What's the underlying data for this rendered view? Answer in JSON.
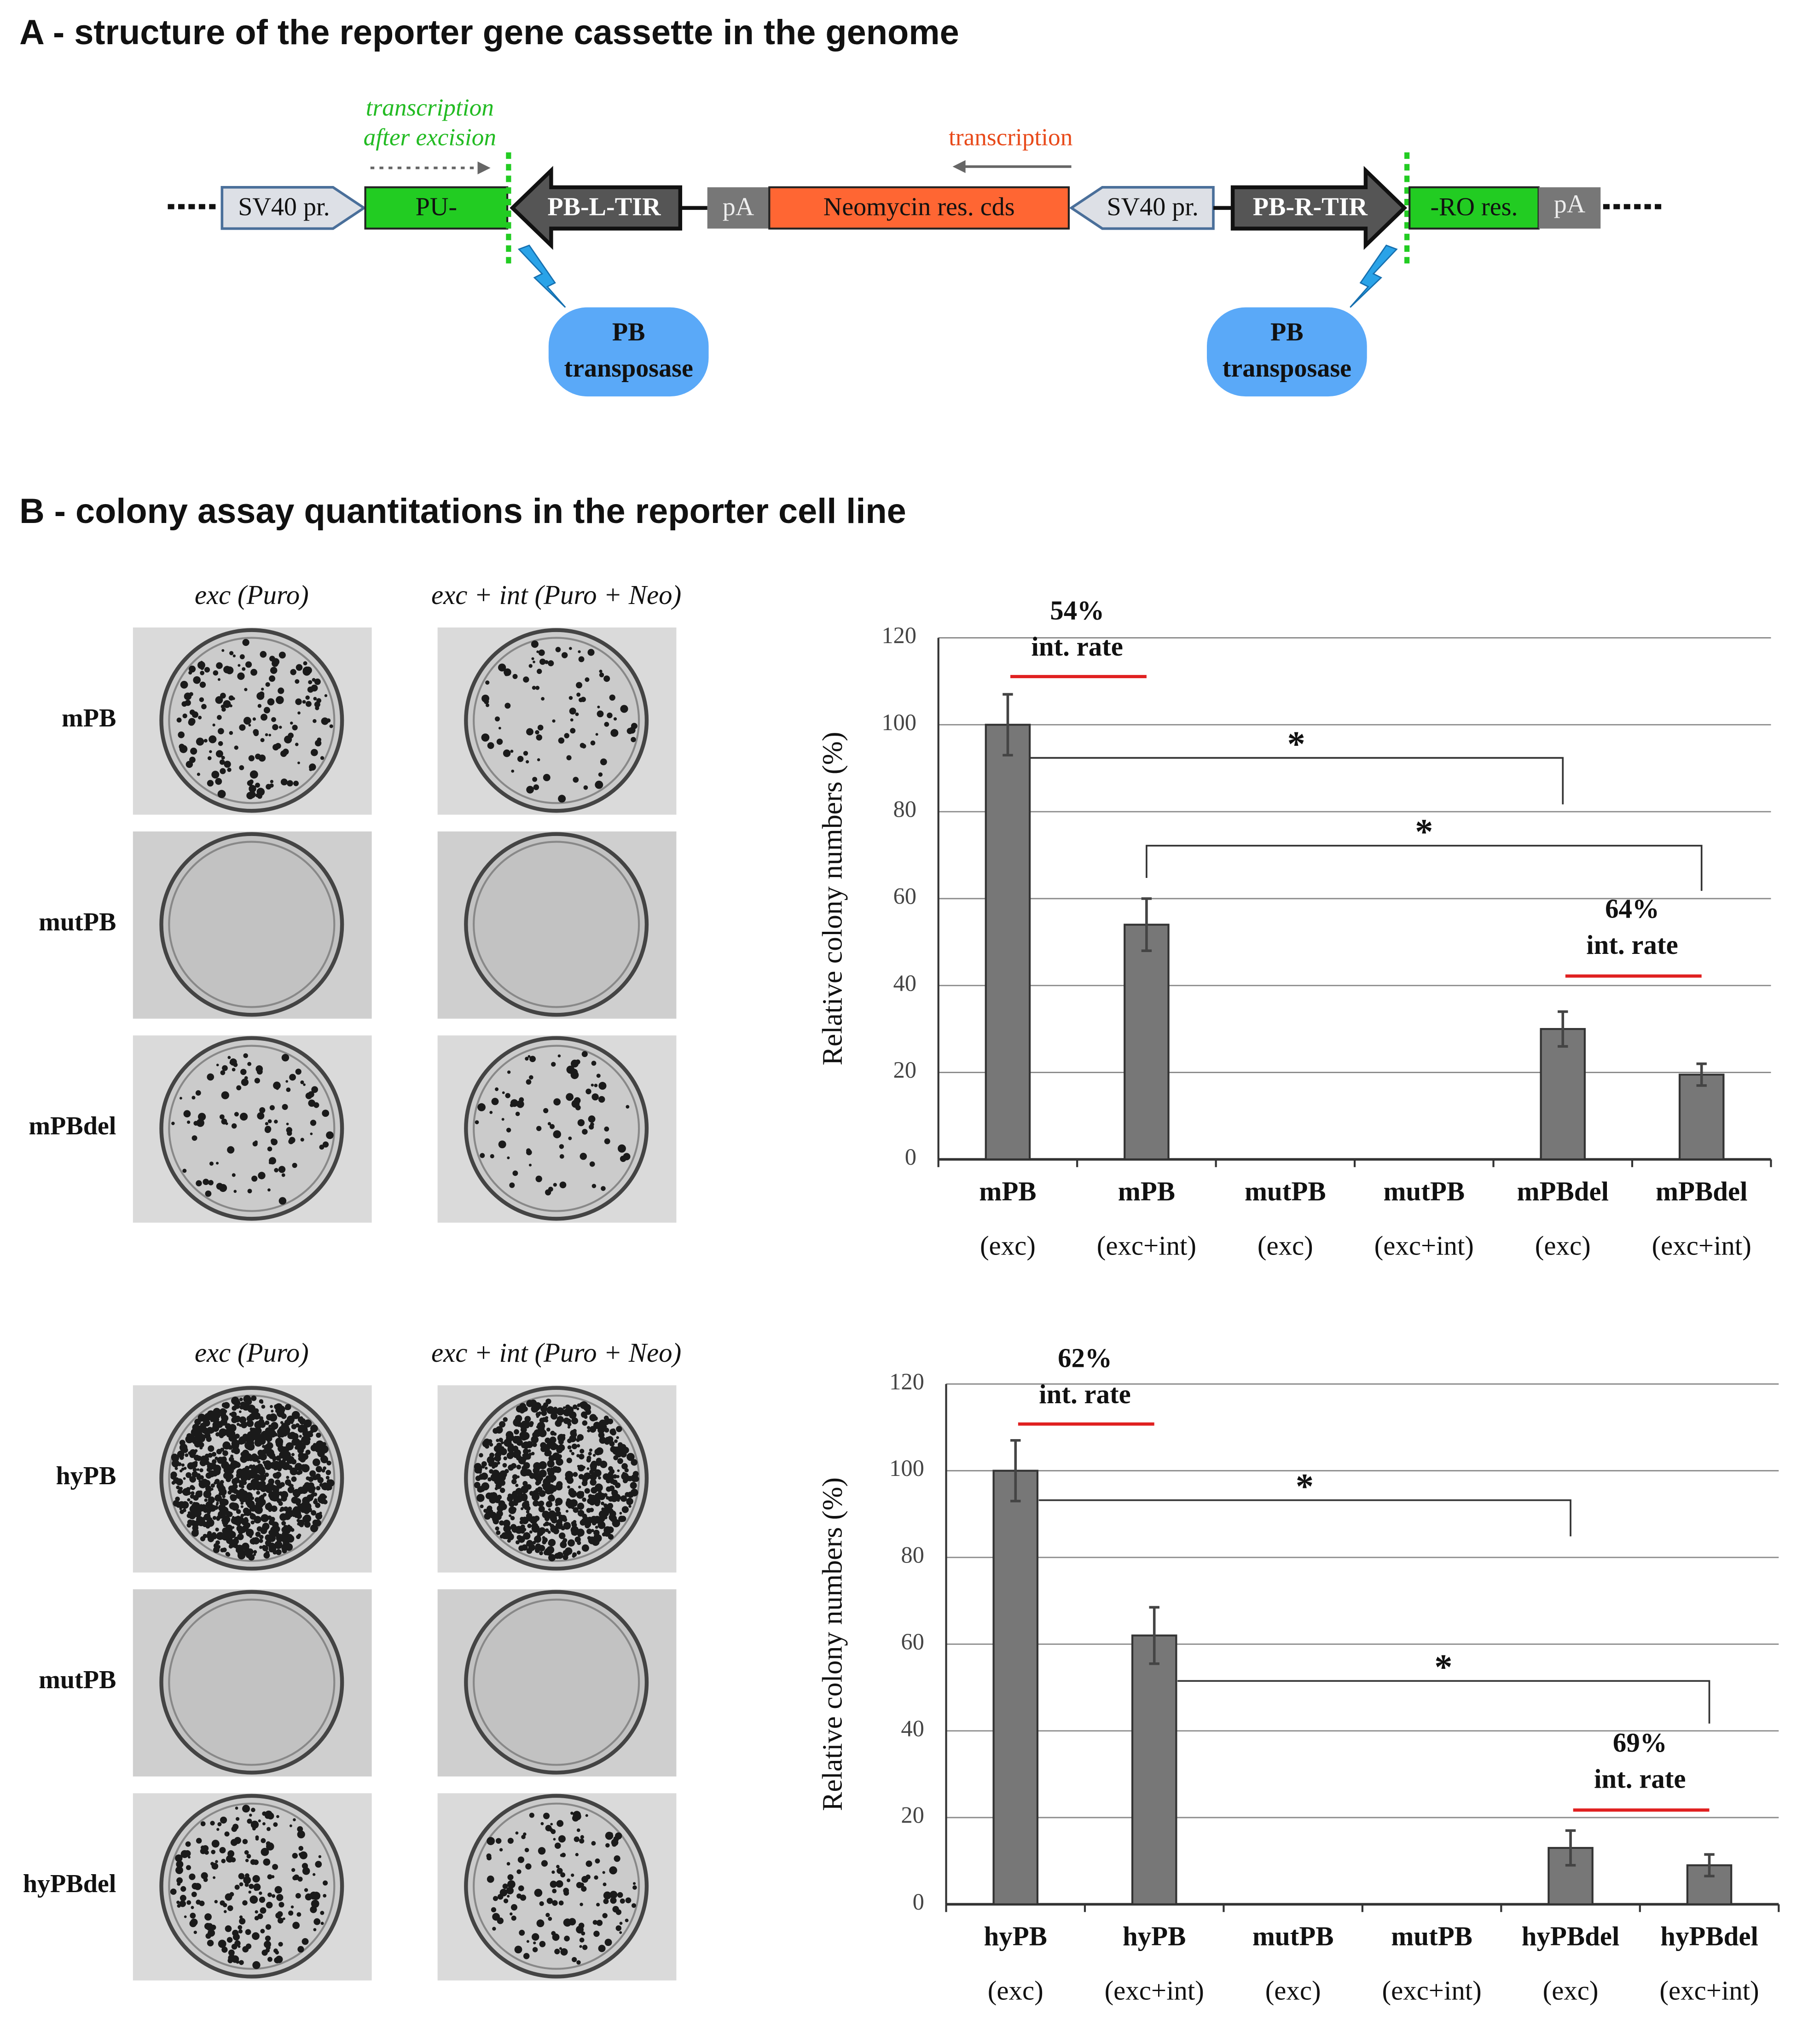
{
  "panel_a": {
    "title": "A - structure of the reporter gene cassette in the genome",
    "transcription_after_excision": [
      "transcription",
      "after excision"
    ],
    "transcription": "transcription",
    "elements": {
      "sv40_left": "SV40 pr.",
      "pu": "PU-",
      "pb_l_tir": "PB-L-TIR",
      "pa_left": "pA",
      "neo": "Neomycin res. cds",
      "sv40_right": "SV40 pr.",
      "pb_r_tir": "PB-R-TIR",
      "ro": "-RO res.",
      "pa_right": "pA"
    },
    "transposase": [
      [
        "PB",
        "transposase"
      ],
      [
        "PB",
        "transposase"
      ]
    ]
  },
  "panel_b": {
    "title": "B - colony assay quantitations in the reporter cell line",
    "photo_sets": [
      {
        "columns": [
          "exc (Puro)",
          "exc + int (Puro + Neo)"
        ],
        "rows": [
          "mPB",
          "mutPB",
          "mPBdel"
        ]
      },
      {
        "columns": [
          "exc (Puro)",
          "exc + int (Puro + Neo)"
        ],
        "rows": [
          "hyPB",
          "mutPB",
          "hyPBdel"
        ]
      }
    ]
  },
  "chart_data": [
    {
      "type": "bar",
      "ylabel": "Relative colony numbers (%)",
      "categories": [
        [
          "mPB",
          "(exc)"
        ],
        [
          "mPB",
          "(exc+int)"
        ],
        [
          "mutPB",
          "(exc)"
        ],
        [
          "mutPB",
          "(exc+int)"
        ],
        [
          "mPBdel",
          "(exc)"
        ],
        [
          "mPBdel",
          "(exc+int)"
        ]
      ],
      "values": [
        100,
        54,
        0,
        0,
        30,
        19.5
      ],
      "errors": [
        7,
        6,
        0,
        0,
        4,
        2.5
      ],
      "color": "#777777",
      "ylim": [
        0,
        120
      ],
      "yticks": [
        0,
        20,
        40,
        60,
        80,
        100,
        120
      ],
      "grid": true,
      "rate_labels": [
        [
          "54%",
          "int. rate"
        ],
        [
          "64%",
          "int. rate"
        ]
      ],
      "significance": [
        "*",
        "*"
      ]
    },
    {
      "type": "bar",
      "ylabel": "Relative colony numbers (%)",
      "categories": [
        [
          "hyPB",
          "(exc)"
        ],
        [
          "hyPB",
          "(exc+int)"
        ],
        [
          "mutPB",
          "(exc)"
        ],
        [
          "mutPB",
          "(exc+int)"
        ],
        [
          "hyPBdel",
          "(exc)"
        ],
        [
          "hyPBdel",
          "(exc+int)"
        ]
      ],
      "values": [
        100,
        62,
        0,
        0,
        13,
        9
      ],
      "errors": [
        7,
        6.5,
        0,
        0,
        4,
        2.5
      ],
      "color": "#777777",
      "ylim": [
        0,
        120
      ],
      "yticks": [
        0,
        20,
        40,
        60,
        80,
        100,
        120
      ],
      "grid": true,
      "rate_labels": [
        [
          "62%",
          "int. rate"
        ],
        [
          "69%",
          "int. rate"
        ]
      ],
      "significance": [
        "*",
        "*"
      ]
    }
  ]
}
